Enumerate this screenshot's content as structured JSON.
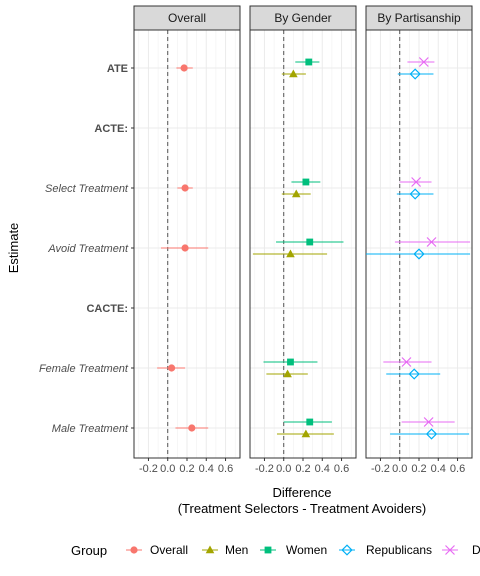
{
  "chart_data": {
    "type": "scatter",
    "subtype": "coefficient-plot-with-error-bars",
    "facets": [
      "Overall",
      "By Gender",
      "By Partisanship"
    ],
    "rows": [
      {
        "label": "ATE",
        "style": "bold"
      },
      {
        "label": "ACTE:",
        "style": "bold"
      },
      {
        "label": "Select Treatment",
        "style": "italic"
      },
      {
        "label": "Avoid Treatment",
        "style": "italic"
      },
      {
        "label": "CACTE:",
        "style": "bold"
      },
      {
        "label": "Female Treatment",
        "style": "italic"
      },
      {
        "label": "Male Treatment",
        "style": "italic"
      }
    ],
    "xlabel": "Difference",
    "xlabel2": "(Treatment Selectors - Treatment Avoiders)",
    "ylabel": "Estimate",
    "xlim": [
      -0.35,
      0.75
    ],
    "xticks": [
      -0.2,
      0.0,
      0.2,
      0.4,
      0.6
    ],
    "xtick_labels": [
      "-0.2",
      "0.0",
      "0.2",
      "0.4",
      "0.6"
    ],
    "reference_line": 0,
    "grid": true,
    "legend": {
      "title": "Group",
      "position": "bottom"
    },
    "series": [
      {
        "name": "Overall",
        "facet": "Overall",
        "color": "#F8766D",
        "marker": "circle",
        "offset": 0,
        "points": [
          {
            "row": "ATE",
            "estimate": 0.17,
            "lower": 0.09,
            "upper": 0.26
          },
          {
            "row": "Select Treatment",
            "estimate": 0.18,
            "lower": 0.1,
            "upper": 0.26
          },
          {
            "row": "Avoid Treatment",
            "estimate": 0.18,
            "lower": -0.07,
            "upper": 0.42
          },
          {
            "row": "Female Treatment",
            "estimate": 0.04,
            "lower": -0.11,
            "upper": 0.18
          },
          {
            "row": "Male Treatment",
            "estimate": 0.25,
            "lower": 0.08,
            "upper": 0.42
          }
        ]
      },
      {
        "name": "Men",
        "facet": "By Gender",
        "color": "#A3A500",
        "marker": "triangle",
        "offset": 1,
        "points": [
          {
            "row": "ATE",
            "estimate": 0.1,
            "lower": -0.02,
            "upper": 0.23
          },
          {
            "row": "Select Treatment",
            "estimate": 0.13,
            "lower": -0.02,
            "upper": 0.28
          },
          {
            "row": "Avoid Treatment",
            "estimate": 0.07,
            "lower": -0.32,
            "upper": 0.45
          },
          {
            "row": "Female Treatment",
            "estimate": 0.04,
            "lower": -0.18,
            "upper": 0.25
          },
          {
            "row": "Male Treatment",
            "estimate": 0.23,
            "lower": -0.07,
            "upper": 0.52
          }
        ]
      },
      {
        "name": "Women",
        "facet": "By Gender",
        "color": "#00BF7D",
        "marker": "square",
        "offset": -1,
        "points": [
          {
            "row": "ATE",
            "estimate": 0.26,
            "lower": 0.12,
            "upper": 0.37
          },
          {
            "row": "Select Treatment",
            "estimate": 0.23,
            "lower": 0.08,
            "upper": 0.38
          },
          {
            "row": "Avoid Treatment",
            "estimate": 0.27,
            "lower": -0.08,
            "upper": 0.62
          },
          {
            "row": "Female Treatment",
            "estimate": 0.07,
            "lower": -0.21,
            "upper": 0.35
          },
          {
            "row": "Male Treatment",
            "estimate": 0.27,
            "lower": 0.0,
            "upper": 0.5
          }
        ]
      },
      {
        "name": "Republicans",
        "facet": "By Partisanship",
        "color": "#00B0F6",
        "marker": "diamond-open",
        "offset": 1,
        "points": [
          {
            "row": "ATE",
            "estimate": 0.16,
            "lower": -0.02,
            "upper": 0.35
          },
          {
            "row": "Select Treatment",
            "estimate": 0.16,
            "lower": -0.03,
            "upper": 0.35
          },
          {
            "row": "Avoid Treatment",
            "estimate": 0.2,
            "lower": -0.35,
            "upper": 0.73
          },
          {
            "row": "Female Treatment",
            "estimate": 0.15,
            "lower": -0.14,
            "upper": 0.42
          },
          {
            "row": "Male Treatment",
            "estimate": 0.33,
            "lower": -0.1,
            "upper": 0.72
          }
        ]
      },
      {
        "name": "D",
        "facet": "By Partisanship",
        "color": "#E76BF3",
        "marker": "x",
        "offset": -1,
        "points": [
          {
            "row": "ATE",
            "estimate": 0.25,
            "lower": 0.08,
            "upper": 0.36
          },
          {
            "row": "Select Treatment",
            "estimate": 0.17,
            "lower": 0.0,
            "upper": 0.33
          },
          {
            "row": "Avoid Treatment",
            "estimate": 0.33,
            "lower": -0.05,
            "upper": 0.73
          },
          {
            "row": "Female Treatment",
            "estimate": 0.07,
            "lower": -0.17,
            "upper": 0.33
          },
          {
            "row": "Male Treatment",
            "estimate": 0.3,
            "lower": 0.02,
            "upper": 0.57
          }
        ]
      }
    ]
  }
}
